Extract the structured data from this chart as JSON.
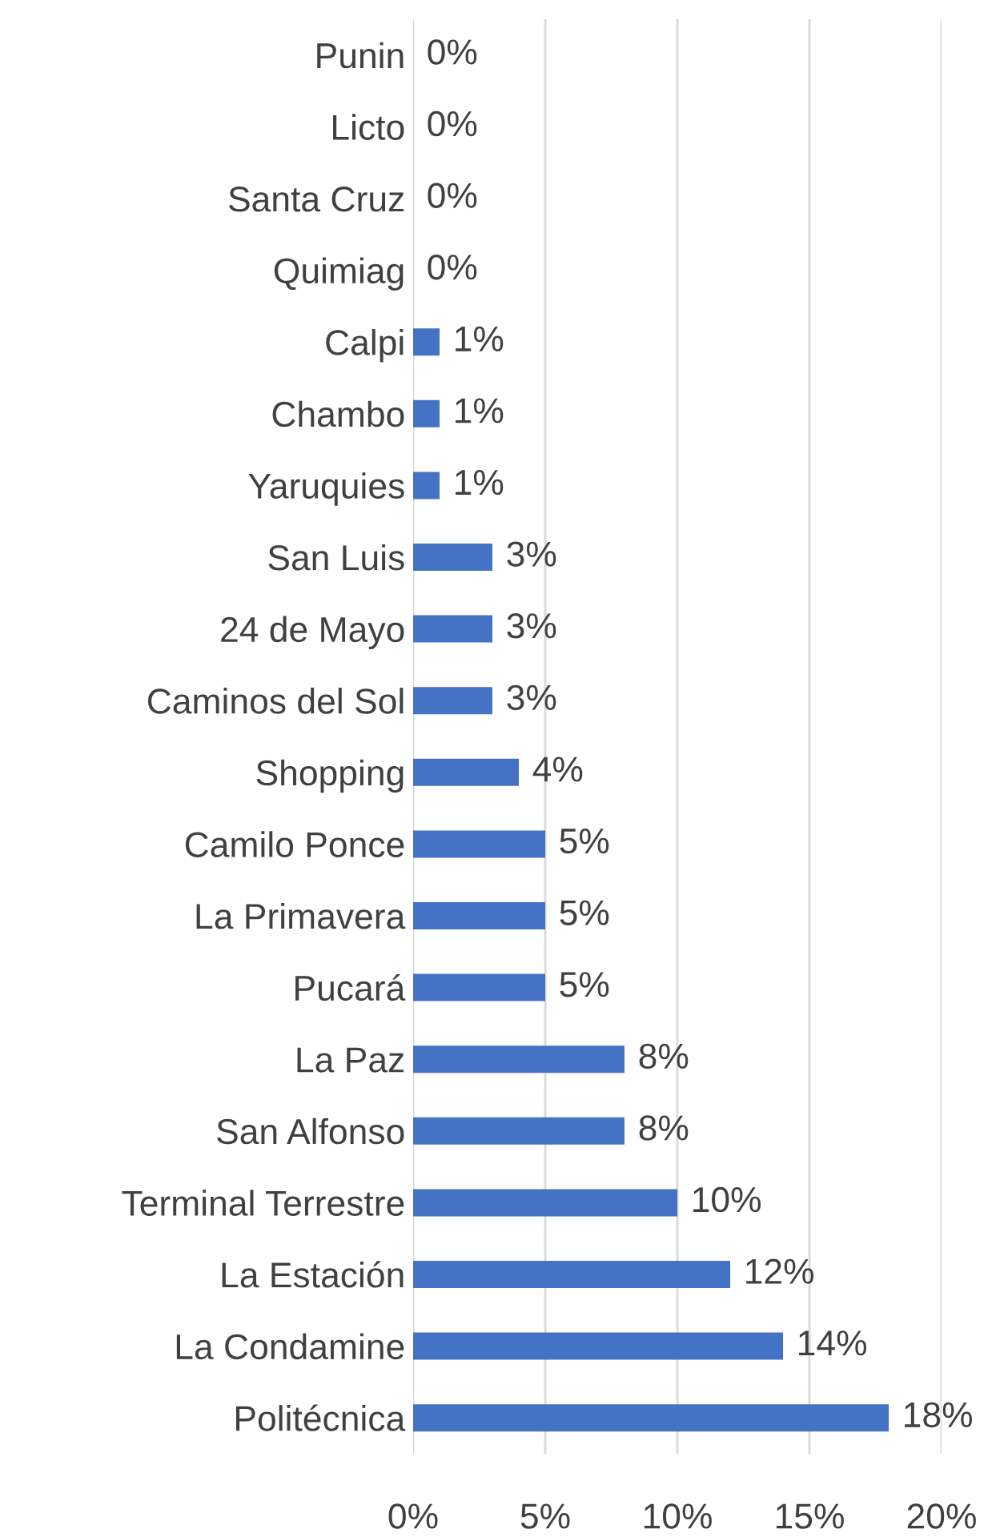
{
  "chart_data": {
    "type": "bar",
    "orientation": "horizontal",
    "categories": [
      "Punin",
      "Licto",
      "Santa Cruz",
      "Quimiag",
      "Calpi",
      "Chambo",
      "Yaruquies",
      "San Luis",
      "24 de Mayo",
      "Caminos del Sol",
      "Shopping",
      "Camilo Ponce",
      "La Primavera",
      "Pucará",
      "La Paz",
      "San Alfonso",
      "Terminal Terrestre",
      "La Estación",
      "La Condamine",
      "Politécnica"
    ],
    "values": [
      0,
      0,
      0,
      0,
      1,
      1,
      1,
      3,
      3,
      3,
      4,
      5,
      5,
      5,
      8,
      8,
      10,
      12,
      14,
      18
    ],
    "value_labels": [
      "0%",
      "0%",
      "0%",
      "0%",
      "1%",
      "1%",
      "1%",
      "3%",
      "3%",
      "3%",
      "4%",
      "5%",
      "5%",
      "5%",
      "8%",
      "8%",
      "10%",
      "12%",
      "14%",
      "18%"
    ],
    "color": "#4472c4",
    "xlim": [
      0,
      20
    ],
    "xticks": [
      {
        "value": 0,
        "label": "0%"
      },
      {
        "value": 5,
        "label": "5%"
      },
      {
        "value": 10,
        "label": "10%"
      },
      {
        "value": 15,
        "label": "15%"
      },
      {
        "value": 20,
        "label": "20%"
      }
    ],
    "grid": "x"
  }
}
